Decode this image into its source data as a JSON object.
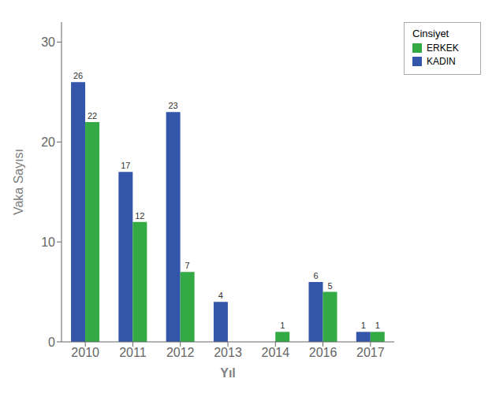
{
  "chart_data": {
    "type": "bar",
    "categories": [
      "2010",
      "2011",
      "2012",
      "2013",
      "2014",
      "2016",
      "2017"
    ],
    "series": [
      {
        "name": "KADIN",
        "color": "#3355aa",
        "values": [
          26,
          17,
          23,
          4,
          0,
          6,
          1
        ],
        "value_labels": [
          "26",
          "17",
          "23",
          "4",
          null,
          "6",
          "1"
        ]
      },
      {
        "name": "ERKEK",
        "color": "#33aa44",
        "values": [
          22,
          12,
          7,
          0,
          1,
          5,
          1
        ],
        "value_labels": [
          "22",
          "12",
          "7",
          null,
          "1",
          "5",
          "1"
        ]
      }
    ],
    "xlabel": "Yıl",
    "ylabel": "Vaka Sayısı",
    "legend_title": "Cinsiyet",
    "legend": "right",
    "ylim": [
      0,
      32
    ],
    "yticks": [
      0,
      10,
      20,
      30
    ],
    "grid": false,
    "data_labels": true
  }
}
